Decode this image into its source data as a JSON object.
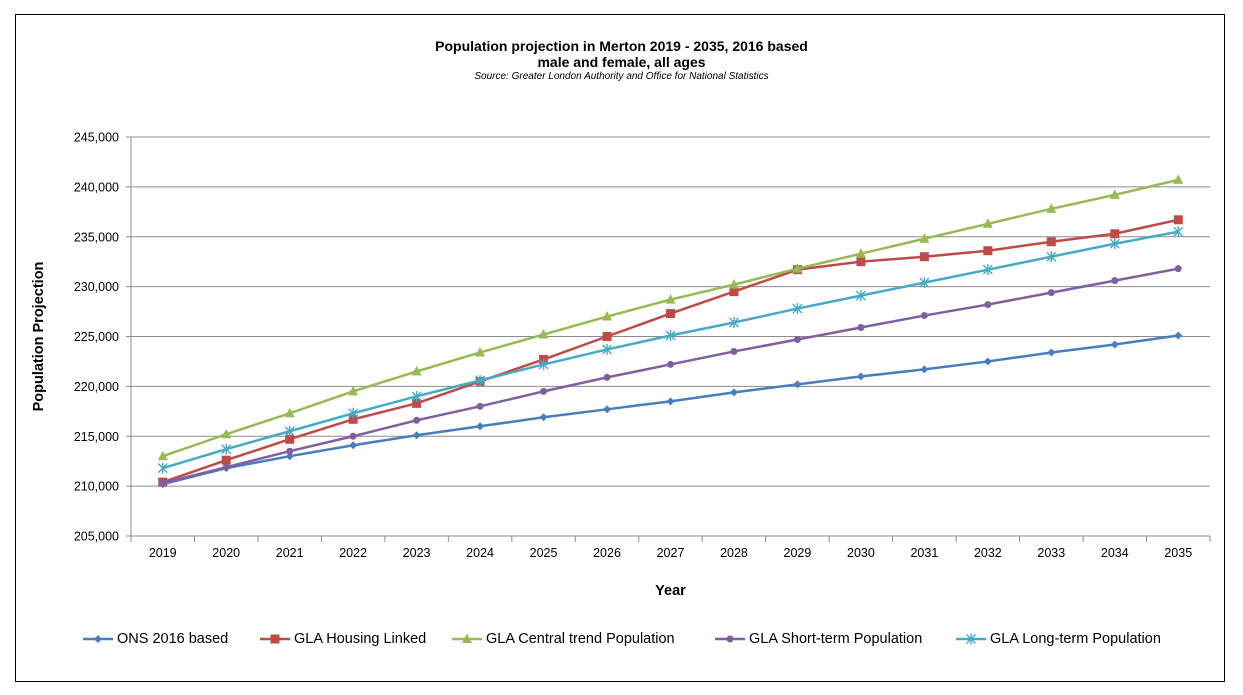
{
  "chart_data": {
    "type": "line",
    "title": "Population projection in Merton 2019 - 2035, 2016 based",
    "title_line2": "male and female, all ages",
    "subtitle": "Source:  Greater London Authority and Office for National Statistics",
    "xlabel": "Year",
    "ylabel": "Population Projection",
    "ylim": [
      205000,
      245000
    ],
    "y_ticks": [
      "205,000",
      "210,000",
      "215,000",
      "220,000",
      "225,000",
      "230,000",
      "235,000",
      "240,000",
      "245,000"
    ],
    "y_tick_values": [
      205000,
      210000,
      215000,
      220000,
      225000,
      230000,
      235000,
      240000,
      245000
    ],
    "categories": [
      "2019",
      "2020",
      "2021",
      "2022",
      "2023",
      "2024",
      "2025",
      "2026",
      "2027",
      "2028",
      "2029",
      "2030",
      "2031",
      "2032",
      "2033",
      "2034",
      "2035"
    ],
    "grid": true,
    "legend_position": "bottom",
    "series": [
      {
        "name": "ONS 2016 based",
        "color": "#4a7ebb",
        "marker": "diamond",
        "values": [
          210200,
          211800,
          213000,
          214100,
          215100,
          216000,
          216900,
          217700,
          218500,
          219400,
          220200,
          221000,
          221700,
          222500,
          223400,
          224200,
          225100
        ]
      },
      {
        "name": "GLA Housing Linked",
        "color": "#be4b48",
        "marker": "square",
        "values": [
          210400,
          212600,
          214700,
          216700,
          218300,
          220500,
          222700,
          225000,
          227300,
          229500,
          231700,
          232500,
          233000,
          233600,
          234500,
          235300,
          236700
        ]
      },
      {
        "name": "GLA Central trend Population",
        "color": "#98b954",
        "marker": "triangle",
        "values": [
          213000,
          215200,
          217300,
          219500,
          221500,
          223400,
          225200,
          227000,
          228700,
          230200,
          231800,
          233300,
          234800,
          236300,
          237800,
          239200,
          240700
        ]
      },
      {
        "name": "GLA Short-term Population",
        "color": "#7d60a0",
        "marker": "circle",
        "values": [
          210300,
          211900,
          213500,
          215000,
          216600,
          218000,
          219500,
          220900,
          222200,
          223500,
          224700,
          225900,
          227100,
          228200,
          229400,
          230600,
          231800
        ]
      },
      {
        "name": "GLA Long-term Population",
        "color": "#46aac5",
        "marker": "star",
        "values": [
          211800,
          213700,
          215500,
          217300,
          219000,
          220600,
          222200,
          223700,
          225100,
          226400,
          227800,
          229100,
          230400,
          231700,
          233000,
          234300,
          235500
        ]
      }
    ]
  }
}
